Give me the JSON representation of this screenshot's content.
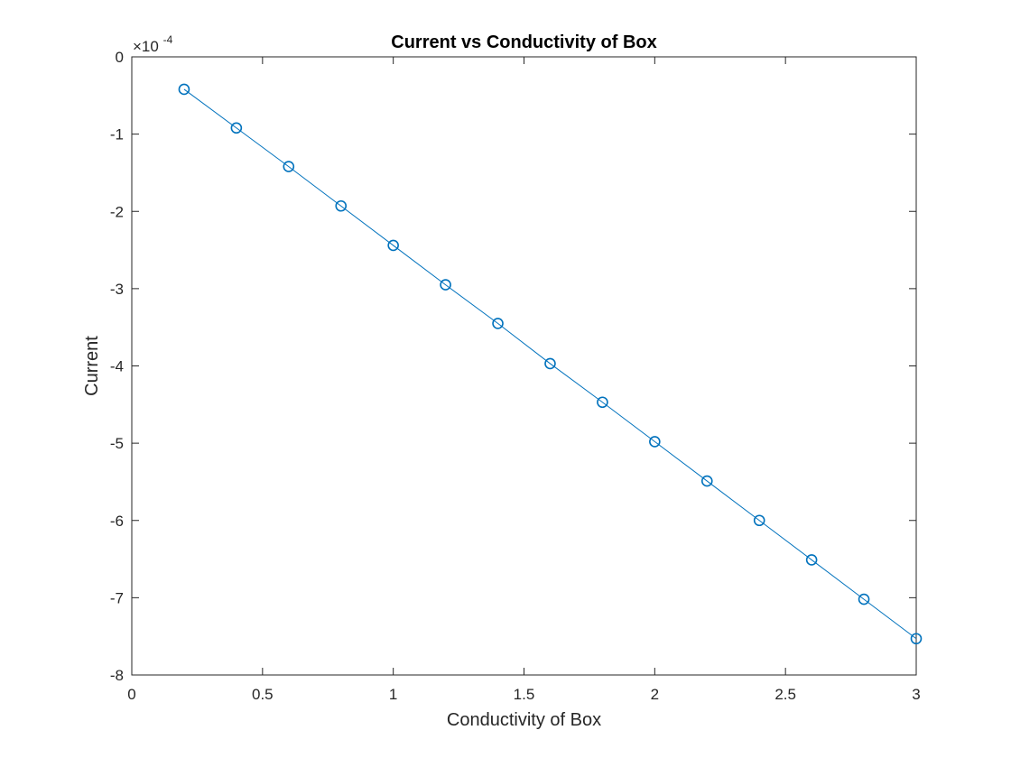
{
  "chart_data": {
    "type": "line",
    "title": "Current vs Conductivity of Box",
    "xlabel": "Conductivity of Box",
    "ylabel": "Current",
    "xlim": [
      0,
      3
    ],
    "ylim": [
      -8,
      0
    ],
    "y_multiplier_base": "×10",
    "y_multiplier_exponent": "-4",
    "xticks": [
      0,
      0.5,
      1,
      1.5,
      2,
      2.5,
      3
    ],
    "xtick_labels": [
      "0",
      "0.5",
      "1",
      "1.5",
      "2",
      "2.5",
      "3"
    ],
    "yticks": [
      0,
      -1,
      -2,
      -3,
      -4,
      -5,
      -6,
      -7,
      -8
    ],
    "ytick_labels": [
      "0",
      "-1",
      "-2",
      "-3",
      "-4",
      "-5",
      "-6",
      "-7",
      "-8"
    ],
    "grid": false,
    "marker": "circle",
    "line_color": "#0072BD",
    "axis_color": "#262626",
    "series": [
      {
        "x": [
          0.2,
          0.4,
          0.6,
          0.8,
          1.0,
          1.2,
          1.4,
          1.6,
          1.8,
          2.0,
          2.2,
          2.4,
          2.6,
          2.8,
          3.0
        ],
        "values": [
          -0.42,
          -0.92,
          -1.42,
          -1.93,
          -2.44,
          -2.95,
          -3.45,
          -3.97,
          -4.47,
          -4.98,
          -5.49,
          -6.0,
          -6.51,
          -7.02,
          -7.53
        ]
      }
    ]
  }
}
